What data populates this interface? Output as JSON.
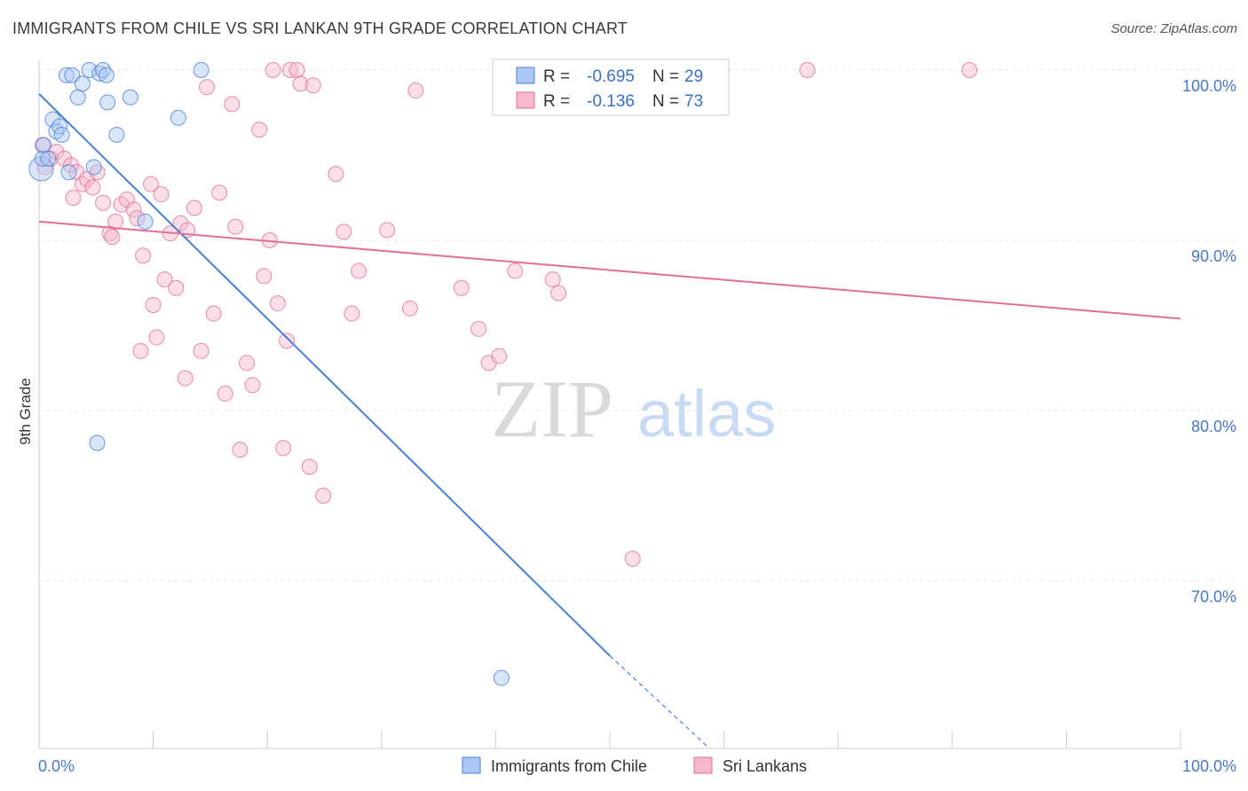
{
  "title": "IMMIGRANTS FROM CHILE VS SRI LANKAN 9TH GRADE CORRELATION CHART",
  "source": "Source: ZipAtlas.com",
  "watermark": {
    "zip": "ZIP",
    "atlas": "atlas"
  },
  "colors": {
    "blue": "#4a7fd6",
    "blue_fill": "#aac8f3",
    "pink": "#e0709a",
    "pink_fill": "#f5b8cc",
    "tick_text": "#4a78c8"
  },
  "legend": {
    "rows": [
      {
        "r_label": "R =",
        "r_value": "-0.695",
        "n_label": "N =",
        "n_value": "29",
        "series": "chile"
      },
      {
        "r_label": "R =",
        "r_value": "-0.136",
        "n_label": "N =",
        "n_value": "73",
        "series": "srilanka"
      }
    ]
  },
  "bottom_legend": [
    "Immigrants from Chile",
    "Sri Lankans"
  ],
  "chart_data": {
    "type": "scatter",
    "title": "IMMIGRANTS FROM CHILE VS SRI LANKAN 9TH GRADE CORRELATION CHART",
    "xlabel": "",
    "ylabel": "9th Grade",
    "xlim": [
      0,
      100
    ],
    "ylim": [
      60.5,
      101
    ],
    "x_ticks": [
      "0.0%",
      "100.0%"
    ],
    "y_ticks": [
      {
        "value": 100,
        "label": "100.0%"
      },
      {
        "value": 90,
        "label": "90.0%"
      },
      {
        "value": 80,
        "label": "80.0%"
      },
      {
        "value": 70,
        "label": "70.0%"
      }
    ],
    "grid": true,
    "series": [
      {
        "name": "Immigrants from Chile",
        "color": "#4a7fd6",
        "points": [
          [
            0.2,
            94.2,
            1.6
          ],
          [
            0.3,
            94.8,
            1
          ],
          [
            0.4,
            95.6,
            1
          ],
          [
            0.8,
            94.8,
            1
          ],
          [
            1.2,
            97.1,
            1
          ],
          [
            1.5,
            96.4,
            1
          ],
          [
            1.8,
            96.7,
            1
          ],
          [
            2.0,
            96.2,
            1
          ],
          [
            2.4,
            99.7,
            1
          ],
          [
            2.6,
            94.0,
            1
          ],
          [
            2.9,
            99.7,
            1
          ],
          [
            3.4,
            98.4,
            1
          ],
          [
            3.8,
            99.2,
            1
          ],
          [
            4.4,
            100.0,
            1
          ],
          [
            4.8,
            94.3,
            1
          ],
          [
            5.1,
            78.1,
            1
          ],
          [
            5.3,
            99.8,
            1
          ],
          [
            5.6,
            100.0,
            1
          ],
          [
            5.9,
            99.7,
            1
          ],
          [
            6.0,
            98.1,
            1
          ],
          [
            6.8,
            96.2,
            1
          ],
          [
            8.0,
            98.4,
            1
          ],
          [
            9.3,
            91.1,
            1
          ],
          [
            12.2,
            97.2,
            1
          ],
          [
            14.2,
            100.0,
            1
          ],
          [
            40.5,
            64.3,
            1
          ]
        ],
        "trend": {
          "x": [
            0,
            50
          ],
          "y": [
            98.6,
            65.6
          ],
          "dashed_to": [
            58.5,
            60.3
          ]
        }
      },
      {
        "name": "Sri Lankans",
        "color": "#e0709a",
        "points": [
          [
            0.3,
            95.6,
            1
          ],
          [
            0.5,
            94.3,
            1
          ],
          [
            1.0,
            94.8,
            1
          ],
          [
            1.5,
            95.2,
            1
          ],
          [
            2.2,
            94.8,
            1
          ],
          [
            2.8,
            94.4,
            1
          ],
          [
            3.3,
            94.0,
            1
          ],
          [
            3.8,
            93.3,
            1
          ],
          [
            4.2,
            93.6,
            1
          ],
          [
            4.7,
            93.1,
            1
          ],
          [
            5.1,
            94.0,
            1
          ],
          [
            5.6,
            92.2,
            1
          ],
          [
            6.2,
            90.4,
            1
          ],
          [
            6.4,
            90.2,
            1
          ],
          [
            6.7,
            91.1,
            1
          ],
          [
            7.2,
            92.1,
            1
          ],
          [
            7.7,
            92.4,
            1
          ],
          [
            8.3,
            91.8,
            1
          ],
          [
            8.6,
            91.3,
            1
          ],
          [
            9.1,
            89.1,
            1
          ],
          [
            9.8,
            93.3,
            1
          ],
          [
            10.0,
            86.2,
            1
          ],
          [
            10.3,
            84.3,
            1
          ],
          [
            10.7,
            92.7,
            1
          ],
          [
            11.0,
            87.7,
            1
          ],
          [
            11.5,
            90.4,
            1
          ],
          [
            12.0,
            87.2,
            1
          ],
          [
            12.4,
            91.0,
            1
          ],
          [
            12.8,
            81.9,
            1
          ],
          [
            13.6,
            91.9,
            1
          ],
          [
            14.2,
            83.5,
            1
          ],
          [
            14.7,
            99.0,
            1
          ],
          [
            15.3,
            85.7,
            1
          ],
          [
            15.8,
            92.8,
            1
          ],
          [
            16.3,
            81.0,
            1
          ],
          [
            16.9,
            98.0,
            1
          ],
          [
            17.2,
            90.8,
            1
          ],
          [
            17.6,
            77.7,
            1
          ],
          [
            18.2,
            82.8,
            1
          ],
          [
            18.7,
            81.5,
            1
          ],
          [
            19.3,
            96.5,
            1
          ],
          [
            19.7,
            87.9,
            1
          ],
          [
            20.2,
            90.0,
            1
          ],
          [
            20.5,
            100.0,
            1
          ],
          [
            20.9,
            86.3,
            1
          ],
          [
            21.4,
            77.8,
            1
          ],
          [
            21.7,
            84.1,
            1
          ],
          [
            22.0,
            100.0,
            1
          ],
          [
            22.6,
            100.0,
            1
          ],
          [
            22.9,
            99.2,
            1
          ],
          [
            23.7,
            76.7,
            1
          ],
          [
            24.0,
            99.1,
            1
          ],
          [
            24.9,
            75.0,
            1
          ],
          [
            26.0,
            93.9,
            1
          ],
          [
            26.7,
            90.5,
            1
          ],
          [
            27.4,
            85.7,
            1
          ],
          [
            28.0,
            88.2,
            1
          ],
          [
            30.5,
            90.6,
            1
          ],
          [
            32.5,
            86.0,
            1
          ],
          [
            33.0,
            98.8,
            1
          ],
          [
            37.0,
            87.2,
            1
          ],
          [
            38.5,
            84.8,
            1
          ],
          [
            39.4,
            82.8,
            1
          ],
          [
            40.3,
            83.2,
            1
          ],
          [
            41.7,
            88.2,
            1
          ],
          [
            45.0,
            87.7,
            1
          ],
          [
            45.5,
            86.9,
            1
          ],
          [
            52.0,
            71.3,
            1
          ],
          [
            67.3,
            100.0,
            1
          ],
          [
            81.5,
            100.0,
            1
          ],
          [
            8.9,
            83.5,
            1
          ],
          [
            3.0,
            92.5,
            1
          ],
          [
            13.0,
            90.6,
            1
          ]
        ],
        "trend": {
          "x": [
            0,
            100
          ],
          "y": [
            91.1,
            85.4
          ]
        }
      }
    ]
  }
}
